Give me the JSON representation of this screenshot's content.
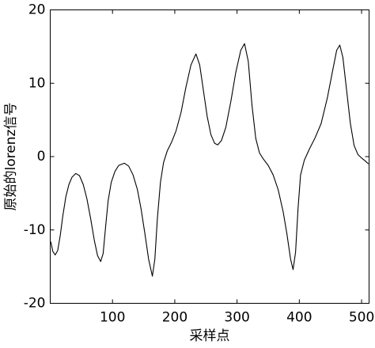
{
  "chart_data": {
    "type": "line",
    "x_label": "采样点",
    "y_label": "原始的lorenz信号",
    "x": [
      1,
      4,
      8,
      12,
      16,
      20,
      25,
      30,
      35,
      41,
      47,
      53,
      59,
      65,
      71,
      76,
      81,
      85,
      89,
      93,
      98,
      104,
      110,
      119,
      126,
      133,
      140,
      146,
      152,
      158,
      164,
      168,
      172,
      177,
      182,
      188,
      195,
      202,
      210,
      218,
      226,
      234,
      240,
      246,
      252,
      258,
      264,
      269,
      275,
      282,
      290,
      298,
      306,
      312,
      318,
      324,
      330,
      336,
      342,
      350,
      358,
      366,
      374,
      380,
      386,
      390,
      394,
      398,
      402,
      408,
      416,
      425,
      435,
      445,
      453,
      460,
      465,
      470,
      476,
      482,
      488,
      494,
      500,
      506,
      511
    ],
    "series": [
      {
        "color": "#000000",
        "values": [
          -11.6,
          -12.9,
          -13.4,
          -12.8,
          -10.8,
          -8.2,
          -5.5,
          -3.8,
          -2.8,
          -2.3,
          -2.6,
          -3.8,
          -5.8,
          -8.5,
          -11.5,
          -13.5,
          -14.3,
          -13.2,
          -9.5,
          -6,
          -3.5,
          -2,
          -1.2,
          -0.9,
          -1.3,
          -2.5,
          -4.5,
          -7.2,
          -10.5,
          -14,
          -16.3,
          -14,
          -8.5,
          -3.5,
          -0.8,
          0.8,
          2,
          3.5,
          6,
          9.5,
          12.5,
          14,
          12.5,
          9,
          5.5,
          3,
          1.8,
          1.6,
          2.2,
          4,
          7.5,
          11.5,
          14.5,
          15.4,
          13,
          7,
          2.5,
          0.5,
          -0.3,
          -1.2,
          -2.5,
          -4.5,
          -7.5,
          -10.5,
          -14,
          -15.4,
          -13,
          -7,
          -2.5,
          -0.5,
          1,
          2.5,
          4.5,
          8,
          11.5,
          14.5,
          15.2,
          13.5,
          9,
          4.5,
          1.5,
          0.3,
          -0.2,
          -0.6,
          -1
        ]
      }
    ],
    "xlim": [
      0,
      512
    ],
    "xticks": [
      100,
      200,
      300,
      400,
      500
    ],
    "ylim": [
      -20,
      20
    ],
    "yticks": [
      -20,
      -10,
      0,
      10,
      20
    ]
  }
}
